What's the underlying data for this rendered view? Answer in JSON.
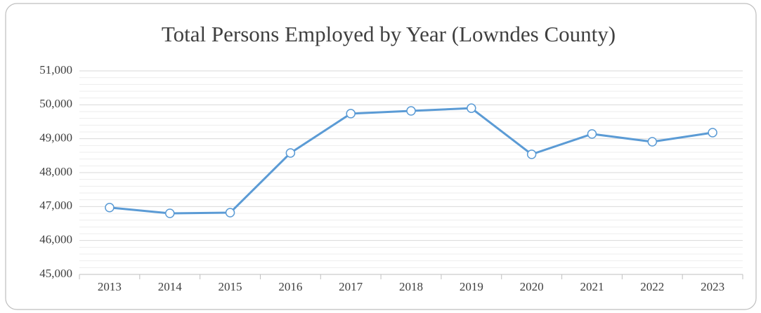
{
  "chart_data": {
    "type": "line",
    "title": "Total Persons Employed by Year (Lowndes County)",
    "categories": [
      "2013",
      "2014",
      "2015",
      "2016",
      "2017",
      "2018",
      "2019",
      "2020",
      "2021",
      "2022",
      "2023"
    ],
    "series": [
      {
        "name": "Total Persons Employed",
        "color": "#5b9bd5",
        "values": [
          46970,
          46800,
          46820,
          48580,
          49740,
          49820,
          49900,
          48540,
          49140,
          48910,
          49180
        ]
      }
    ],
    "ylim": [
      45000,
      51000
    ],
    "yticks": [
      {
        "value": 45000,
        "label": "45,000"
      },
      {
        "value": 46000,
        "label": "46,000"
      },
      {
        "value": 47000,
        "label": "47,000"
      },
      {
        "value": 48000,
        "label": "48,000"
      },
      {
        "value": 49000,
        "label": "49,000"
      },
      {
        "value": 50000,
        "label": "50,000"
      },
      {
        "value": 51000,
        "label": "51,000"
      }
    ],
    "grid": true
  }
}
